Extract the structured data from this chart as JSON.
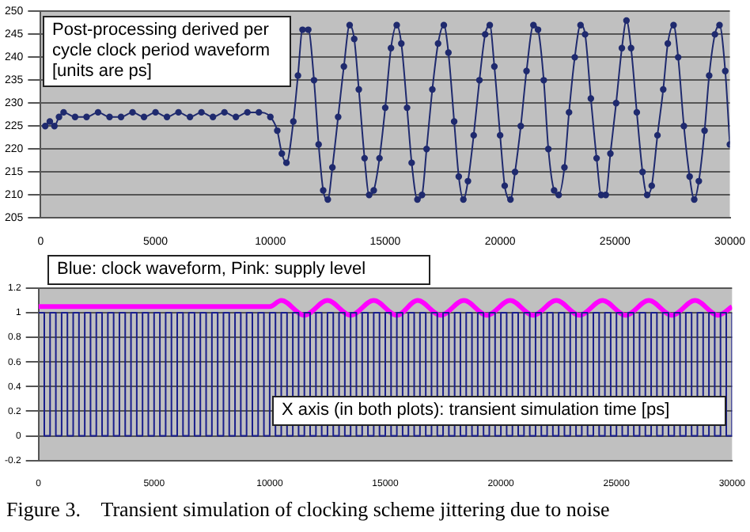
{
  "chart_data": [
    {
      "type": "line",
      "annotations": [
        "Post-processing derived per cycle clock period waveform [units are ps]"
      ],
      "x": [
        200,
        400,
        600,
        800,
        1000,
        1500,
        2000,
        2500,
        3000,
        3500,
        4000,
        4500,
        5000,
        5500,
        6000,
        6500,
        7000,
        7500,
        8000,
        8500,
        9000,
        9500,
        10000,
        10300,
        10500,
        10700,
        11000,
        11200,
        11400,
        11650,
        11900,
        12100,
        12300,
        12500,
        12700,
        12950,
        13200,
        13450,
        13650,
        13850,
        14100,
        14300,
        14500,
        14750,
        15000,
        15250,
        15500,
        15700,
        15950,
        16150,
        16400,
        16600,
        16800,
        17050,
        17300,
        17550,
        17750,
        18000,
        18200,
        18400,
        18600,
        18850,
        19100,
        19350,
        19550,
        19750,
        20000,
        20200,
        20450,
        20650,
        20900,
        21150,
        21450,
        21650,
        21900,
        22100,
        22350,
        22550,
        22800,
        23000,
        23250,
        23500,
        23700,
        23950,
        24200,
        24400,
        24600,
        24800,
        25050,
        25300,
        25500,
        25700,
        25950,
        26200,
        26400,
        26600,
        26850,
        27100,
        27300,
        27550,
        27750,
        28000,
        28250,
        28450,
        28650,
        28900,
        29100,
        29350,
        29550,
        29800,
        30000
      ],
      "series": [
        {
          "color": "#1f2a6e",
          "values": [
            225,
            226,
            225,
            227,
            228,
            227,
            227,
            228,
            227,
            227,
            228,
            227,
            228,
            227,
            228,
            227,
            228,
            227,
            228,
            227,
            228,
            228,
            227,
            224,
            219,
            217,
            226,
            236,
            246,
            246,
            235,
            221,
            211,
            209,
            216,
            227,
            238,
            247,
            244,
            233,
            218,
            210,
            211,
            218,
            229,
            242,
            247,
            243,
            229,
            217,
            209,
            210,
            220,
            233,
            243,
            247,
            241,
            226,
            214,
            209,
            213,
            223,
            235,
            245,
            247,
            238,
            223,
            212,
            209,
            215,
            225,
            237,
            247,
            246,
            235,
            220,
            211,
            210,
            216,
            228,
            240,
            247,
            245,
            231,
            218,
            210,
            210,
            219,
            230,
            242,
            248,
            242,
            228,
            215,
            210,
            212,
            223,
            233,
            243,
            247,
            240,
            225,
            214,
            209,
            213,
            224,
            236,
            245,
            247,
            237,
            221
          ]
        }
      ],
      "xlim": [
        0,
        30000
      ],
      "xticks": [
        0,
        5000,
        10000,
        15000,
        20000,
        25000,
        30000
      ],
      "ylim": [
        205,
        250
      ],
      "yticks": [
        205,
        210,
        215,
        220,
        225,
        230,
        235,
        240,
        245,
        250
      ],
      "grid": "y",
      "marker": "circle",
      "line_style": "solid"
    },
    {
      "type": "line",
      "annotations": [
        "Blue: clock waveform, Pink: supply level",
        "X axis (in both plots): transient simulation time [ps]",
        "Figure 3.    Transient simulation of clocking scheme jittering due to noise"
      ],
      "series": [
        {
          "type": "step",
          "color": "#1a1f8c",
          "x": [
            0,
            250,
            500,
            750,
            1000,
            1250,
            1500,
            1750,
            2000,
            2250,
            2500,
            2750,
            3000,
            3250,
            3500,
            3750,
            4000,
            4250,
            4500,
            4750,
            5000,
            5250,
            5500,
            5750,
            6000,
            6250,
            6500,
            6750,
            7000,
            7250,
            7500,
            7750,
            8000,
            8250,
            8500,
            8750,
            9000,
            9250,
            9500,
            9750,
            10000,
            10250,
            10500,
            10750,
            11000,
            11250,
            11500,
            11750,
            12000,
            12250,
            12500,
            12750,
            13000,
            13250,
            13500,
            13750,
            14000,
            14250,
            14500,
            14750,
            15000,
            15250,
            15500,
            15750,
            16000,
            16250,
            16500,
            16750,
            17000,
            17250,
            17500,
            17750,
            18000,
            18250,
            18500,
            18750,
            19000,
            19250,
            19500,
            19750,
            20000,
            20250,
            20500,
            20750,
            21000,
            21250,
            21500,
            21750,
            22000,
            22250,
            22500,
            22750,
            23000,
            23250,
            23500,
            23750,
            24000,
            24250,
            24500,
            24750,
            25000,
            25250,
            25500,
            25750,
            26000,
            26250,
            26500,
            26750,
            27000,
            27250,
            27500,
            27750,
            28000,
            28250,
            28500,
            28750,
            29000,
            29250,
            29500,
            29750,
            30000
          ],
          "values": [
            1,
            0,
            1,
            0,
            1,
            0,
            1,
            0,
            1,
            0,
            1,
            0,
            1,
            0,
            1,
            0,
            1,
            0,
            1,
            0,
            1,
            0,
            1,
            0,
            1,
            0,
            1,
            0,
            1,
            0,
            1,
            0,
            1,
            0,
            1,
            0,
            1,
            0,
            1,
            0,
            1,
            0,
            1,
            0,
            1,
            0,
            1,
            0,
            1,
            0,
            1,
            0,
            1,
            0,
            1,
            0,
            1,
            0,
            1,
            0,
            1,
            0,
            1,
            0,
            1,
            0,
            1,
            0,
            1,
            0,
            1,
            0,
            1,
            0,
            1,
            0,
            1,
            0,
            1,
            0,
            1,
            0,
            1,
            0,
            1,
            0,
            1,
            0,
            1,
            0,
            1,
            0,
            1,
            0,
            1,
            0,
            1,
            0,
            1,
            0,
            1,
            0,
            1,
            0,
            1,
            0,
            1,
            0,
            1,
            0,
            1,
            0,
            1,
            0,
            1,
            0,
            1,
            0,
            1,
            0,
            1
          ]
        },
        {
          "type": "line",
          "color": "#ff00ff",
          "x": [
            0,
            10000,
            10500,
            11500,
            12500,
            13500,
            14500,
            15500,
            16400,
            17400,
            18400,
            19400,
            20400,
            21400,
            22400,
            23400,
            24400,
            25400,
            26400,
            27400,
            28400,
            29400,
            30000
          ],
          "values": [
            1.05,
            1.05,
            1.1,
            0.98,
            1.1,
            0.98,
            1.1,
            0.98,
            1.1,
            0.98,
            1.1,
            0.98,
            1.1,
            0.98,
            1.1,
            0.98,
            1.1,
            0.98,
            1.1,
            0.98,
            1.1,
            0.98,
            1.05
          ]
        }
      ],
      "xlim": [
        0,
        30000
      ],
      "xticks": [
        0,
        5000,
        10000,
        15000,
        20000,
        25000,
        30000
      ],
      "ylim": [
        -0.2,
        1.2
      ],
      "yticks": [
        -0.2,
        0,
        0.2,
        0.4,
        0.6,
        0.8,
        1,
        1.2
      ],
      "grid": "y",
      "line_style": "solid"
    }
  ]
}
